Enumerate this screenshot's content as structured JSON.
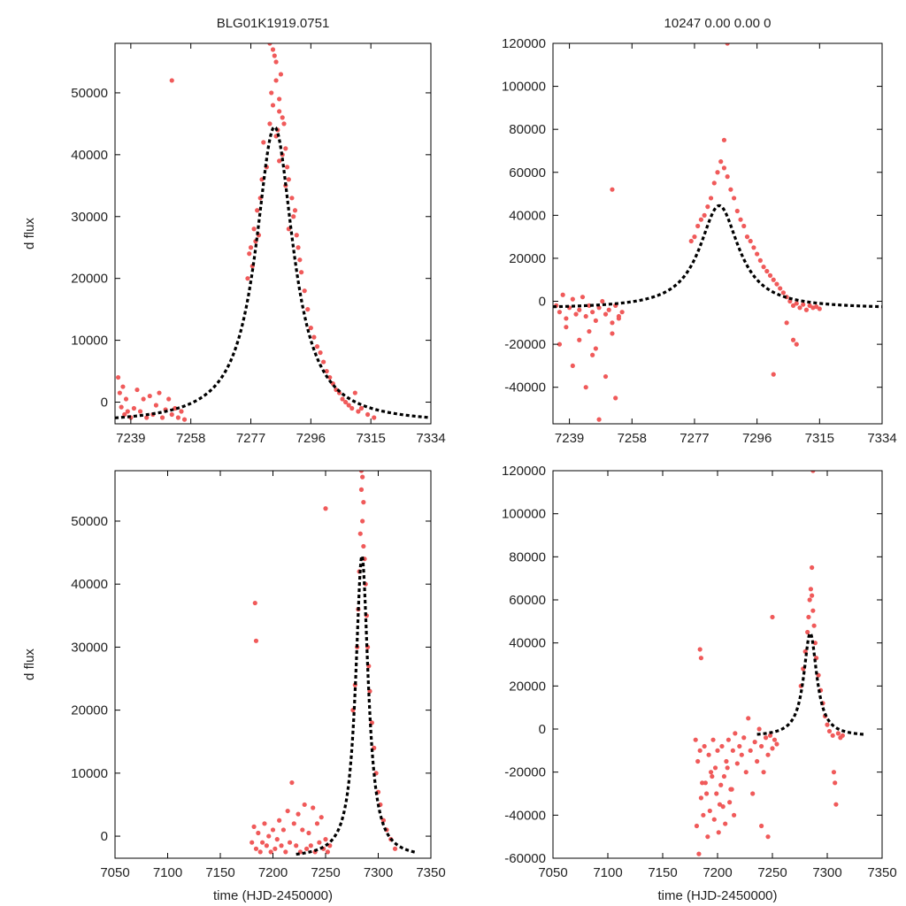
{
  "colors": {
    "points": "#f05a5a",
    "fit": "#000000",
    "frame": "#000000",
    "background": "#ffffff"
  },
  "chart_data": [
    {
      "type": "scatter",
      "id": "top-left",
      "title": "BLG01K1919.0751",
      "xlabel": "",
      "ylabel": "d flux",
      "xlim": [
        7234,
        7334
      ],
      "ylim": [
        -3500,
        58000
      ],
      "xticks": [
        7239,
        7258,
        7277,
        7296,
        7315,
        7334
      ],
      "yticks": [
        0,
        10000,
        20000,
        30000,
        40000,
        50000
      ],
      "grid": false,
      "fit": {
        "model": "lorentz-peak",
        "t0": 7284.5,
        "amplitude": 48000,
        "baseline": -3500,
        "width": 7.2,
        "x_start": 7234,
        "x_end": 7334
      },
      "series": [
        {
          "name": "data",
          "style": "points",
          "x": [
            7235,
            7235.5,
            7236,
            7236.5,
            7237,
            7237.5,
            7238,
            7239,
            7240,
            7241,
            7242,
            7243,
            7244,
            7245,
            7246,
            7247,
            7248,
            7249,
            7250,
            7251,
            7252,
            7253,
            7254,
            7255,
            7256,
            7252,
            7276,
            7276.5,
            7277,
            7277.5,
            7278,
            7278.5,
            7279,
            7279.5,
            7280,
            7280.5,
            7281,
            7282,
            7283,
            7283.5,
            7284,
            7284.5,
            7285,
            7285.5,
            7286,
            7286.5,
            7287,
            7287.5,
            7288,
            7288.5,
            7289,
            7290,
            7290.5,
            7291,
            7291.5,
            7292,
            7292.5,
            7293,
            7294,
            7295,
            7296,
            7297,
            7298,
            7299,
            7300,
            7301,
            7302,
            7303,
            7304,
            7305,
            7306,
            7307,
            7308,
            7309,
            7310,
            7311,
            7312,
            7314,
            7316,
            7283,
            7284,
            7285,
            7286,
            7287,
            7285,
            7286,
            7288,
            7289
          ],
          "y": [
            4000,
            1500,
            -800,
            2500,
            -2000,
            500,
            -1500,
            -2500,
            -1000,
            2000,
            -1500,
            500,
            -2500,
            1000,
            -2000,
            -500,
            1500,
            -2500,
            -1200,
            500,
            -2000,
            -1000,
            -2500,
            -1500,
            -2800,
            52000,
            20000,
            24000,
            25000,
            22000,
            28000,
            26000,
            31000,
            27000,
            33000,
            36000,
            42000,
            38000,
            45000,
            50000,
            48000,
            56000,
            52000,
            44000,
            47000,
            53000,
            40000,
            45000,
            41000,
            38000,
            36000,
            33000,
            30000,
            31000,
            27000,
            25000,
            23000,
            21000,
            18000,
            15000,
            12000,
            10500,
            9000,
            8000,
            6500,
            5000,
            4000,
            3000,
            2000,
            1500,
            500,
            0,
            -500,
            -1000,
            1500,
            -1500,
            -1000,
            -2000,
            -2500,
            58000,
            57000,
            55000,
            49000,
            46000,
            43000,
            39000,
            35000,
            28000
          ]
        }
      ]
    },
    {
      "type": "scatter",
      "id": "top-right",
      "title": "10247  0.00  0.00  0",
      "xlabel": "",
      "ylabel": "",
      "xlim": [
        7234,
        7334
      ],
      "ylim": [
        -57000,
        120000
      ],
      "xticks": [
        7239,
        7258,
        7277,
        7296,
        7315,
        7334
      ],
      "yticks": [
        -40000,
        -20000,
        0,
        20000,
        40000,
        60000,
        80000,
        100000,
        120000
      ],
      "grid": false,
      "fit": {
        "model": "lorentz-peak",
        "t0": 7284.5,
        "amplitude": 48000,
        "baseline": -3500,
        "width": 7.2,
        "x_start": 7234,
        "x_end": 7334
      },
      "series": [
        {
          "name": "data",
          "style": "points",
          "x": [
            7235,
            7236,
            7237,
            7238,
            7239,
            7240,
            7241,
            7242,
            7243,
            7244,
            7245,
            7246,
            7247,
            7248,
            7249,
            7250,
            7251,
            7252,
            7253,
            7254,
            7255,
            7236,
            7238,
            7240,
            7242,
            7244,
            7246,
            7248,
            7250,
            7252,
            7253,
            7254,
            7252,
            7247,
            7245,
            7276,
            7277,
            7278,
            7279,
            7280,
            7281,
            7282,
            7283,
            7284,
            7285,
            7286,
            7287,
            7288,
            7289,
            7290,
            7291,
            7292,
            7293,
            7294,
            7295,
            7296,
            7297,
            7298,
            7299,
            7300,
            7301,
            7302,
            7303,
            7304,
            7305,
            7306,
            7307,
            7308,
            7309,
            7310,
            7311,
            7312,
            7313,
            7314,
            7315,
            7305,
            7307,
            7308,
            7301,
            7286,
            7287
          ],
          "y": [
            -2000,
            -5000,
            3000,
            -8000,
            -3000,
            1000,
            -6000,
            -4000,
            2000,
            -7000,
            -2000,
            -5000,
            -9000,
            -3000,
            0,
            -6000,
            -4000,
            -10000,
            -2000,
            -7000,
            -5000,
            -20000,
            -12000,
            -30000,
            -18000,
            -40000,
            -25000,
            -55000,
            -35000,
            -15000,
            -45000,
            -8000,
            52000,
            -22000,
            -14000,
            28000,
            30000,
            35000,
            38000,
            40000,
            44000,
            48000,
            55000,
            60000,
            65000,
            62000,
            58000,
            52000,
            48000,
            42000,
            38000,
            35000,
            30000,
            28000,
            25000,
            22000,
            19000,
            16000,
            14000,
            12000,
            10000,
            8000,
            6000,
            4000,
            2000,
            0,
            -2000,
            -1000,
            -3000,
            -1500,
            -4000,
            -2000,
            -3000,
            -2500,
            -3500,
            -10000,
            -18000,
            -20000,
            -34000,
            75000,
            120000
          ]
        }
      ]
    },
    {
      "type": "scatter",
      "id": "bottom-left",
      "title": "",
      "xlabel": "time (HJD-2450000)",
      "ylabel": "d flux",
      "xlim": [
        7050,
        7350
      ],
      "ylim": [
        -3500,
        58000
      ],
      "xticks": [
        7050,
        7100,
        7150,
        7200,
        7250,
        7300,
        7350
      ],
      "yticks": [
        0,
        10000,
        20000,
        30000,
        40000,
        50000
      ],
      "grid": false,
      "fit": {
        "model": "lorentz-peak",
        "t0": 7284.5,
        "amplitude": 48000,
        "baseline": -3500,
        "width": 7.2,
        "x_start": 7222,
        "x_end": 7335
      },
      "series": [
        {
          "name": "data",
          "style": "points",
          "x": [
            7180,
            7182,
            7184,
            7186,
            7188,
            7190,
            7192,
            7194,
            7196,
            7198,
            7200,
            7202,
            7204,
            7206,
            7208,
            7210,
            7212,
            7214,
            7216,
            7218,
            7220,
            7222,
            7224,
            7226,
            7228,
            7230,
            7232,
            7234,
            7236,
            7238,
            7240,
            7242,
            7244,
            7246,
            7248,
            7250,
            7252,
            7254,
            7183,
            7184,
            7250,
            7276,
            7278,
            7280,
            7281,
            7282,
            7283,
            7284,
            7285,
            7286,
            7287,
            7288,
            7289,
            7290,
            7291,
            7292,
            7294,
            7296,
            7298,
            7300,
            7302,
            7305,
            7308,
            7312,
            7316,
            7284,
            7285,
            7286
          ],
          "y": [
            -1000,
            1500,
            -2000,
            500,
            -2500,
            -1000,
            2000,
            -1500,
            0,
            -2500,
            1000,
            -2000,
            -500,
            2500,
            -1500,
            1000,
            -2500,
            4000,
            -1000,
            8500,
            2000,
            -1500,
            3500,
            -2500,
            1000,
            5000,
            -2000,
            500,
            -1500,
            4500,
            -2500,
            2000,
            -1000,
            3000,
            -2000,
            -500,
            -2500,
            -1500,
            37000,
            31000,
            52000,
            20000,
            24000,
            30000,
            36000,
            42000,
            48000,
            55000,
            50000,
            46000,
            44000,
            40000,
            35000,
            30000,
            27000,
            23000,
            18000,
            14000,
            10000,
            7000,
            5000,
            2500,
            1000,
            -500,
            -2000,
            58000,
            57000,
            53000
          ]
        }
      ]
    },
    {
      "type": "scatter",
      "id": "bottom-right",
      "title": "",
      "xlabel": "time (HJD-2450000)",
      "ylabel": "",
      "xlim": [
        7050,
        7350
      ],
      "ylim": [
        -60000,
        120000
      ],
      "xticks": [
        7050,
        7100,
        7150,
        7200,
        7250,
        7300,
        7350
      ],
      "yticks": [
        -60000,
        -40000,
        -20000,
        0,
        20000,
        40000,
        60000,
        80000,
        100000,
        120000
      ],
      "grid": false,
      "fit": {
        "model": "lorentz-peak",
        "t0": 7284.5,
        "amplitude": 48000,
        "baseline": -3500,
        "width": 7.2,
        "x_start": 7236,
        "x_end": 7335
      },
      "series": [
        {
          "name": "data",
          "style": "points",
          "x": [
            7180,
            7182,
            7184,
            7186,
            7188,
            7190,
            7192,
            7194,
            7196,
            7198,
            7200,
            7202,
            7204,
            7206,
            7208,
            7210,
            7212,
            7214,
            7216,
            7218,
            7220,
            7222,
            7224,
            7226,
            7228,
            7230,
            7232,
            7234,
            7236,
            7238,
            7240,
            7242,
            7244,
            7246,
            7248,
            7250,
            7252,
            7254,
            7181,
            7183,
            7185,
            7187,
            7189,
            7191,
            7193,
            7195,
            7197,
            7199,
            7201,
            7203,
            7205,
            7207,
            7209,
            7211,
            7213,
            7215,
            7184,
            7185,
            7250,
            7246,
            7240,
            7276,
            7278,
            7280,
            7282,
            7283,
            7284,
            7285,
            7286,
            7287,
            7288,
            7289,
            7290,
            7292,
            7294,
            7296,
            7298,
            7300,
            7302,
            7305,
            7306,
            7307,
            7308,
            7310,
            7312,
            7314,
            7286,
            7287
          ],
          "y": [
            -5000,
            -15000,
            -10000,
            -25000,
            -8000,
            -30000,
            -12000,
            -20000,
            -5000,
            -18000,
            -10000,
            -35000,
            -8000,
            -22000,
            -15000,
            -5000,
            -28000,
            -10000,
            -2000,
            -16000,
            -8000,
            -12000,
            -4000,
            -20000,
            5000,
            -10000,
            -30000,
            -6000,
            -15000,
            0,
            -8000,
            -20000,
            -4000,
            -12000,
            -3000,
            -9000,
            -5000,
            -7000,
            -45000,
            -58000,
            -32000,
            -40000,
            -25000,
            -50000,
            -38000,
            -22000,
            -42000,
            -30000,
            -48000,
            -26000,
            -36000,
            -44000,
            -18000,
            -34000,
            -28000,
            -40000,
            37000,
            33000,
            52000,
            -50000,
            -45000,
            20000,
            28000,
            36000,
            45000,
            52000,
            60000,
            65000,
            62000,
            55000,
            48000,
            40000,
            33000,
            25000,
            18000,
            12000,
            6000,
            2000,
            -1000,
            -3000,
            -20000,
            -25000,
            -35000,
            -2000,
            -4000,
            -3000,
            75000,
            120000
          ]
        }
      ]
    }
  ]
}
